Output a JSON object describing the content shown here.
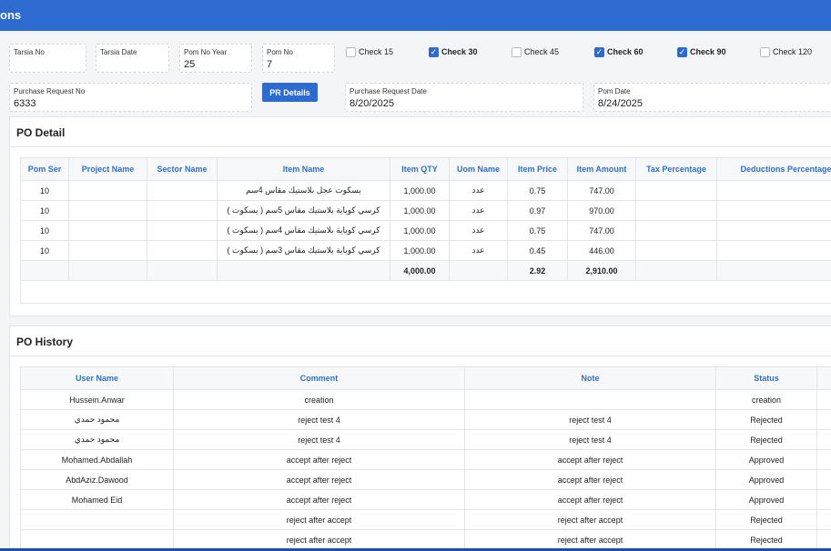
{
  "header": {
    "title": "ons"
  },
  "form": {
    "fields": [
      {
        "label": "Tarsia No"
      },
      {
        "label": "Tarsia Date"
      },
      {
        "label": "Pom No Year",
        "value": "25"
      },
      {
        "label": "Pom No",
        "value": "7"
      },
      {
        "label": "Purchase Request No",
        "value": "6333"
      },
      {
        "label": "Purchase Request Date",
        "value": "8/20/2025"
      },
      {
        "label": "Pom Date",
        "value": "8/24/2025"
      }
    ],
    "checks": [
      {
        "label": "Check 15",
        "checked": false
      },
      {
        "label": "Check 30",
        "checked": true
      },
      {
        "label": "Check 45",
        "checked": false
      },
      {
        "label": "Check 60",
        "checked": true
      },
      {
        "label": "Check 90",
        "checked": true
      },
      {
        "label": "Check 120",
        "checked": false
      }
    ],
    "button": "PR Details"
  },
  "po_detail": {
    "title": "PO Detail",
    "columns": [
      "Pom Ser",
      "Project Name",
      "Sector Name",
      "Item Name",
      "Item QTY",
      "Uom Name",
      "Item Price",
      "Item Amount",
      "Tax Percentage",
      "Deductions Percentage"
    ],
    "rows": [
      {
        "pom_ser": "10",
        "item_name": "بسكوت عجل بلاستيك مقاس 4سم",
        "qty": "1,000.00",
        "uom": "عدد",
        "price": "0.75",
        "amount": "747.00"
      },
      {
        "pom_ser": "10",
        "item_name": "كرسي كوباية بلاستيك مقاس 5سم ( بسكوت )",
        "qty": "1,000.00",
        "uom": "عدد",
        "price": "0.97",
        "amount": "970.00"
      },
      {
        "pom_ser": "10",
        "item_name": "كرسي كوباية بلاستيك مقاس 4سم ( بسكوت )",
        "qty": "1,000.00",
        "uom": "عدد",
        "price": "0.75",
        "amount": "747.00"
      },
      {
        "pom_ser": "10",
        "item_name": "كرسي كوباية بلاستيك مقاس 3سم ( بسكوت )",
        "qty": "1,000.00",
        "uom": "عدد",
        "price": "0.45",
        "amount": "446.00"
      }
    ],
    "totals": {
      "qty": "4,000.00",
      "price": "2.92",
      "amount": "2,910.00"
    }
  },
  "po_history": {
    "title": "PO History",
    "columns": [
      "User Name",
      "Comment",
      "Note",
      "Status"
    ],
    "rows": [
      {
        "user": "Hussein.Anwar",
        "comment": "creation",
        "status": "creation"
      },
      {
        "user": "محمود حمدي",
        "comment": "reject test 4",
        "note": "reject test 4",
        "status": "Rejected"
      },
      {
        "user": "محمود حمدي",
        "comment": "reject test 4",
        "note": "reject test 4",
        "status": "Rejected"
      },
      {
        "user": "Mohamed.Abdallah",
        "comment": "accept after reject",
        "note": "accept after reject",
        "status": "Approved"
      },
      {
        "user": "AbdAziz.Dawood",
        "comment": "accept after reject",
        "note": "accept after reject",
        "status": "Approved"
      },
      {
        "user": "Mohamed Eid",
        "comment": "accept after reject",
        "note": "accept after reject",
        "status": "Approved"
      },
      {
        "comment": "reject after accept",
        "note": "reject after accept",
        "status": "Rejected"
      },
      {
        "comment": "reject after accept",
        "note": "reject after accept",
        "status": "Rejected"
      }
    ]
  }
}
